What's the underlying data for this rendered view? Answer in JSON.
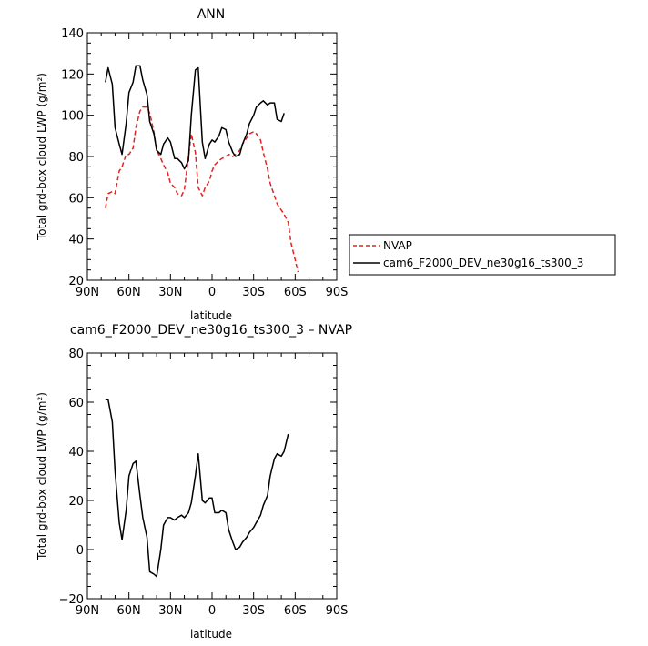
{
  "chart_data": [
    {
      "type": "line",
      "title": "ANN",
      "xlabel": "latitude",
      "ylabel": "Total grd-box cloud LWP (g/m²)",
      "x_ticks": [
        "90N",
        "60N",
        "30N",
        "0",
        "30S",
        "60S",
        "90S"
      ],
      "y_ticks": [
        "20",
        "40",
        "60",
        "80",
        "100",
        "120",
        "140"
      ],
      "xlim": [
        -90,
        90
      ],
      "ylim": [
        20,
        140
      ],
      "legend": "right",
      "series": [
        {
          "name": "NVAP",
          "color": "#e32222",
          "dash": true,
          "x": [
            -77,
            -75,
            -72,
            -70,
            -67,
            -65,
            -62,
            -60,
            -57,
            -55,
            -52,
            -50,
            -47,
            -45,
            -42,
            -40,
            -37,
            -35,
            -32,
            -30,
            -27,
            -25,
            -22,
            -20,
            -17,
            -15,
            -12,
            -10,
            -7,
            -5,
            -2,
            0,
            2,
            5,
            7,
            10,
            12,
            15,
            17,
            20,
            22,
            25,
            27,
            30,
            32,
            35,
            37,
            40,
            42,
            45,
            47,
            50,
            52,
            55,
            57,
            60,
            62,
            65,
            67,
            70,
            72,
            75,
            77
          ],
          "y": [
            55,
            62,
            63,
            62,
            73,
            75,
            81,
            81,
            84,
            94,
            102,
            104,
            104,
            101,
            92,
            83,
            79,
            76,
            72,
            67,
            65,
            62,
            61,
            64,
            80,
            91,
            82,
            65,
            61,
            65,
            68,
            73,
            76,
            78,
            79,
            80,
            81,
            80,
            81,
            83,
            86,
            89,
            91,
            92,
            91,
            88,
            82,
            74,
            67,
            61,
            57,
            54,
            52,
            48,
            38,
            30,
            24,
            null,
            null,
            null,
            null,
            null,
            null
          ]
        },
        {
          "name": "cam6_F2000_DEV_ne30g16_ts300_3",
          "color": "#000000",
          "dash": false,
          "x": [
            -77,
            -75,
            -72,
            -70,
            -67,
            -65,
            -62,
            -60,
            -57,
            -55,
            -52,
            -50,
            -47,
            -45,
            -42,
            -40,
            -37,
            -35,
            -32,
            -30,
            -27,
            -25,
            -22,
            -20,
            -17,
            -15,
            -12,
            -10,
            -7,
            -5,
            -2,
            0,
            2,
            5,
            7,
            10,
            12,
            15,
            17,
            20,
            22,
            25,
            27,
            30,
            32,
            35,
            37,
            40,
            42,
            45,
            47,
            50,
            52,
            55,
            57,
            60,
            62,
            65
          ],
          "y": [
            116,
            123,
            115,
            94,
            86,
            81,
            96,
            111,
            116,
            124,
            124,
            117,
            110,
            97,
            91,
            83,
            81,
            86,
            89,
            87,
            79,
            79,
            77,
            74,
            78,
            100,
            122,
            123,
            87,
            79,
            86,
            88,
            87,
            90,
            94,
            93,
            87,
            82,
            80,
            81,
            86,
            91,
            96,
            100,
            104,
            106,
            107,
            105,
            106,
            106,
            98,
            97,
            101,
            null,
            null,
            null,
            null,
            null
          ]
        }
      ]
    },
    {
      "type": "line",
      "title": "cam6_F2000_DEV_ne30g16_ts300_3 – NVAP",
      "xlabel": "latitude",
      "ylabel": "Total grd-box cloud LWP (g/m²)",
      "x_ticks": [
        "90N",
        "60N",
        "30N",
        "0",
        "30S",
        "60S",
        "90S"
      ],
      "y_ticks": [
        "−20",
        "0",
        "20",
        "40",
        "60",
        "80"
      ],
      "xlim": [
        -90,
        90
      ],
      "ylim": [
        -20,
        80
      ],
      "series": [
        {
          "name": "",
          "color": "#000000",
          "dash": false,
          "x": [
            -77,
            -75,
            -72,
            -70,
            -67,
            -65,
            -62,
            -60,
            -57,
            -55,
            -52,
            -50,
            -47,
            -45,
            -42,
            -40,
            -37,
            -35,
            -32,
            -30,
            -27,
            -25,
            -22,
            -20,
            -17,
            -15,
            -12,
            -10,
            -7,
            -5,
            -2,
            0,
            2,
            5,
            7,
            10,
            12,
            15,
            17,
            20,
            22,
            25,
            27,
            30,
            32,
            35,
            37,
            40,
            42,
            45,
            47,
            50,
            52,
            55,
            57,
            60,
            62,
            65
          ],
          "y": [
            61,
            61,
            52,
            32,
            11,
            4,
            16,
            30,
            35,
            36,
            22,
            13,
            5,
            -9,
            -10,
            -11,
            0,
            10,
            13,
            13,
            12,
            13,
            14,
            13,
            15,
            19,
            30,
            39,
            20,
            19,
            21,
            21,
            15,
            15,
            16,
            15,
            8,
            3,
            0,
            1,
            3,
            5,
            7,
            9,
            11,
            14,
            18,
            22,
            30,
            37,
            39,
            38,
            40,
            47,
            null,
            null,
            null,
            null
          ]
        }
      ]
    }
  ],
  "legend_entries": [
    "NVAP",
    "cam6_F2000_DEV_ne30g16_ts300_3"
  ]
}
